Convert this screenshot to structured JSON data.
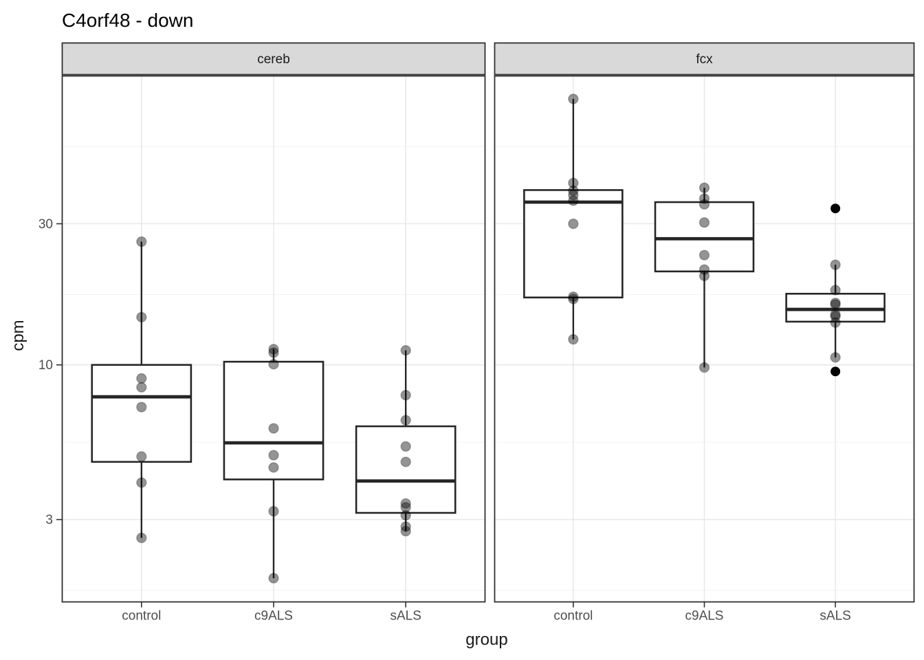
{
  "chart_data": {
    "type": "boxplot",
    "title": "C4orf48 - down",
    "xlabel": "group",
    "ylabel": "cpm",
    "y_scale": "log10",
    "y_ticks": [
      30,
      10,
      3
    ],
    "y_minor_breaks": [
      54.8,
      17.3,
      5.48,
      1.73
    ],
    "ylim": [
      1.58,
      94.8
    ],
    "categories": [
      "control",
      "c9ALS",
      "sALS"
    ],
    "legend": "none",
    "grid": "on",
    "point_style": {
      "color": "#000000",
      "alpha": 0.42
    },
    "colors": {
      "strip_fill": "#d9d9d9",
      "panel_border": "#2f2f2f",
      "box_stroke": "#262626",
      "grid_major": "#e6e6e6",
      "grid_minor": "#f2f2f2",
      "tick_label": "#4d4d4d"
    },
    "facets": [
      {
        "label": "cereb",
        "groups": [
          {
            "group": "control",
            "q1": 4.7,
            "median": 7.8,
            "q3": 10.0,
            "whisker_low": 2.6,
            "whisker_high": 26.1,
            "points": [
              26.1,
              14.5,
              9.0,
              8.4,
              7.2,
              4.9,
              4.0,
              2.6
            ],
            "outliers": []
          },
          {
            "group": "c9ALS",
            "q1": 4.1,
            "median": 5.45,
            "q3": 10.25,
            "whisker_low": 1.9,
            "whisker_high": 11.3,
            "points": [
              11.3,
              11.0,
              10.05,
              6.1,
              4.95,
              4.5,
              3.2,
              1.9
            ],
            "outliers": []
          },
          {
            "group": "sALS",
            "q1": 3.16,
            "median": 4.05,
            "q3": 6.2,
            "whisker_low": 2.74,
            "whisker_high": 11.2,
            "points": [
              11.2,
              7.9,
              6.5,
              5.3,
              4.7,
              3.4,
              3.3,
              3.1,
              2.84,
              2.74
            ],
            "outliers": []
          }
        ]
      },
      {
        "label": "fcx",
        "groups": [
          {
            "group": "control",
            "q1": 16.9,
            "median": 35.5,
            "q3": 39.0,
            "whisker_low": 12.2,
            "whisker_high": 79.3,
            "points": [
              79.3,
              41.2,
              38.8,
              37.5,
              35.9,
              30.0,
              17.0,
              16.7,
              12.2
            ],
            "outliers": []
          },
          {
            "group": "c9ALS",
            "q1": 20.7,
            "median": 26.7,
            "q3": 35.5,
            "whisker_low": 9.8,
            "whisker_high": 39.7,
            "points": [
              39.7,
              36.5,
              34.9,
              30.3,
              23.5,
              21.0,
              20.0,
              9.8
            ],
            "outliers": []
          },
          {
            "group": "sALS",
            "q1": 14.0,
            "median": 15.4,
            "q3": 17.4,
            "whisker_low": 10.6,
            "whisker_high": 21.8,
            "points": [
              21.8,
              17.9,
              16.2,
              16.0,
              14.8,
              14.6,
              13.9,
              10.6
            ],
            "outliers": [
              33.8,
              9.5
            ]
          }
        ]
      }
    ]
  }
}
